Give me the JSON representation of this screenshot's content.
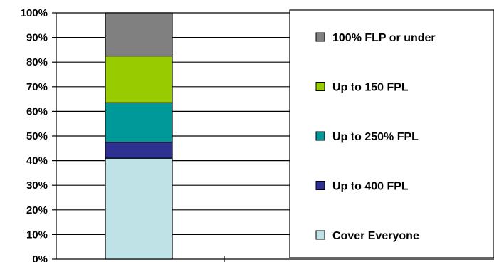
{
  "chart_data": {
    "type": "bar",
    "stacked": true,
    "stack_mode": "percent",
    "categories": [
      ""
    ],
    "ylim": [
      0,
      100
    ],
    "y_ticks": [
      "0%",
      "10%",
      "20%",
      "30%",
      "40%",
      "50%",
      "60%",
      "70%",
      "80%",
      "90%",
      "100%"
    ],
    "grid": true,
    "legend_position": "right",
    "series": [
      {
        "name": "Cover Everyone",
        "values": [
          41
        ],
        "color": "#bfe2e6"
      },
      {
        "name": "Up to 400 FPL",
        "values": [
          6.5
        ],
        "color": "#2e3192"
      },
      {
        "name": "Up to 250% FPL",
        "values": [
          16
        ],
        "color": "#009999"
      },
      {
        "name": "Up to 150 FPL",
        "values": [
          19
        ],
        "color": "#99cc00"
      },
      {
        "name": "100% FLP or under",
        "values": [
          17.5
        ],
        "color": "#808080"
      }
    ]
  }
}
